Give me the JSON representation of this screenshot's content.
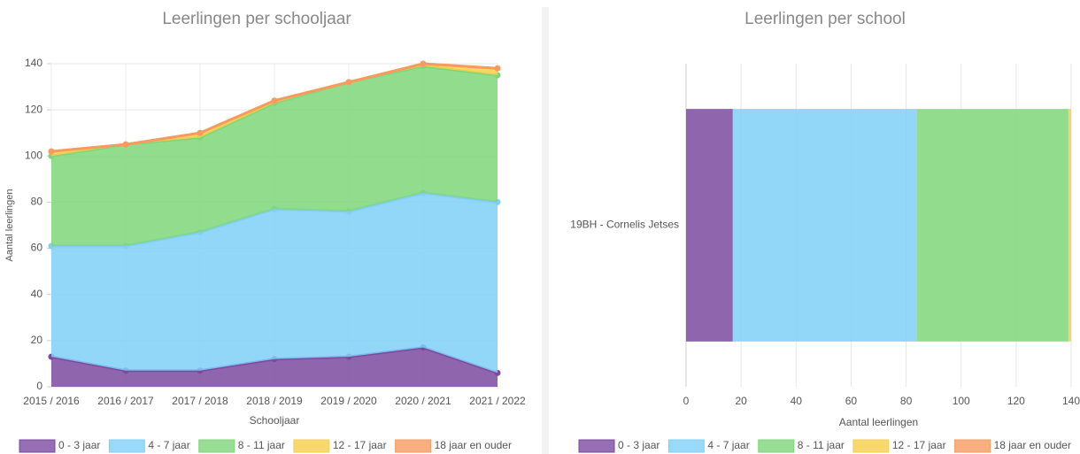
{
  "chart_data": [
    {
      "type": "stacked_area",
      "title": "Leerlingen per schooljaar",
      "xlabel": "Schooljaar",
      "ylabel": "Aantal leerlingen",
      "categories": [
        "2015 / 2016",
        "2016 / 2017",
        "2017 / 2018",
        "2018 / 2019",
        "2019 / 2020",
        "2020 / 2021",
        "2021 / 2022"
      ],
      "series": [
        {
          "name": "0 - 3 jaar",
          "color": "#7b4aa0",
          "values": [
            13,
            7,
            7,
            12,
            13,
            17,
            6
          ]
        },
        {
          "name": "4 - 7 jaar",
          "color": "#7fcff7",
          "values": [
            48,
            54,
            60,
            65,
            63,
            67,
            74
          ]
        },
        {
          "name": "8 - 11 jaar",
          "color": "#7fd67a",
          "values": [
            39,
            44,
            41,
            46,
            56,
            55,
            55
          ]
        },
        {
          "name": "12 - 17 jaar",
          "color": "#f7cf4a",
          "values": [
            2,
            0,
            2,
            1,
            0,
            1,
            3
          ]
        },
        {
          "name": "18 jaar en ouder",
          "color": "#f89a5f",
          "values": [
            0,
            0,
            0,
            0,
            0,
            0,
            0
          ]
        }
      ],
      "ylim": [
        0,
        140
      ],
      "yticks": [
        0,
        20,
        40,
        60,
        80,
        100,
        120,
        140
      ],
      "grid": true
    },
    {
      "type": "stacked_hbar",
      "title": "Leerlingen per school",
      "xlabel": "Aantal leerlingen",
      "categories": [
        "19BH - Cornelis Jetses"
      ],
      "series": [
        {
          "name": "0 - 3 jaar",
          "color": "#7b4aa0",
          "values": [
            17
          ]
        },
        {
          "name": "4 - 7 jaar",
          "color": "#7fcff7",
          "values": [
            67
          ]
        },
        {
          "name": "8 - 11 jaar",
          "color": "#7fd67a",
          "values": [
            55
          ]
        },
        {
          "name": "12 - 17 jaar",
          "color": "#f7cf4a",
          "values": [
            1
          ]
        },
        {
          "name": "18 jaar en ouder",
          "color": "#f89a5f",
          "values": [
            0
          ]
        }
      ],
      "xlim": [
        0,
        140
      ],
      "xticks": [
        0,
        20,
        40,
        60,
        80,
        100,
        120,
        140
      ],
      "grid": true
    }
  ]
}
